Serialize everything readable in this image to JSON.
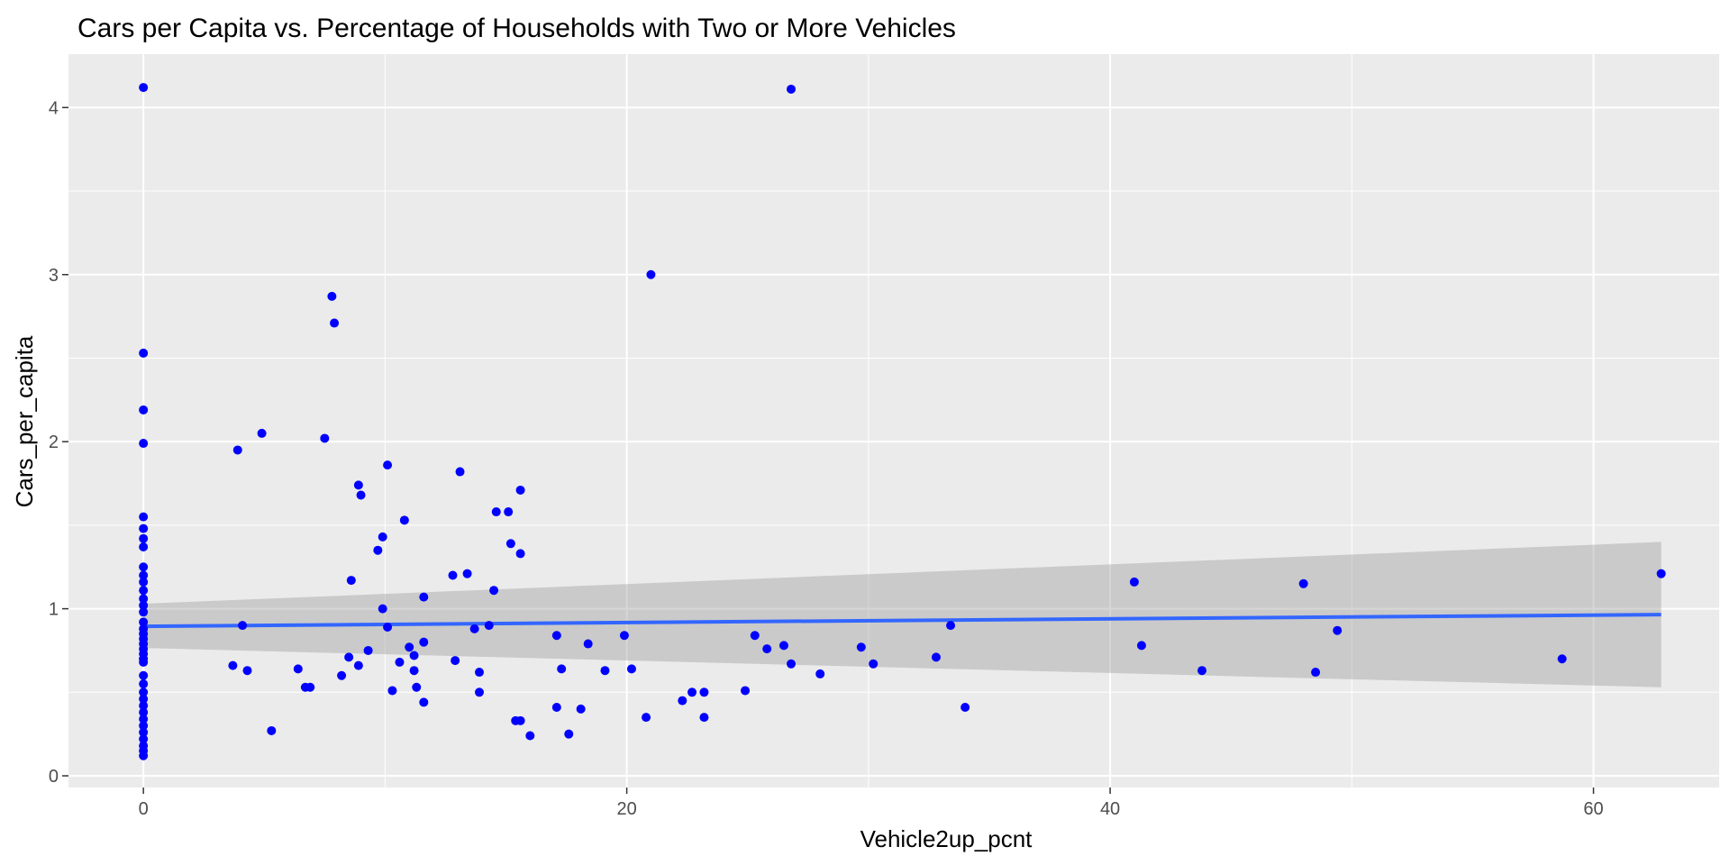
{
  "chart_data": {
    "type": "scatter",
    "title": "Cars per Capita vs. Percentage of Households with Two or More Vehicles",
    "xlabel": "Vehicle2up_pcnt",
    "ylabel": "Cars_per_capita",
    "xlim": [
      -3.1,
      65.2
    ],
    "ylim": [
      -0.07,
      4.32
    ],
    "xticks": [
      0,
      20,
      40,
      60
    ],
    "yticks": [
      0,
      1,
      2,
      3,
      4
    ],
    "grid": true,
    "point_color": "#0000ff",
    "line_color": "#3366ff",
    "band_color": "#999999",
    "panel_color": "#ebebeb",
    "grid_color": "#ffffff",
    "points": [
      [
        0,
        4.12
      ],
      [
        0,
        2.53
      ],
      [
        0,
        2.19
      ],
      [
        0,
        1.99
      ],
      [
        0,
        1.55
      ],
      [
        0,
        1.48
      ],
      [
        0,
        1.42
      ],
      [
        0,
        1.37
      ],
      [
        0,
        1.25
      ],
      [
        0,
        1.2
      ],
      [
        0,
        1.16
      ],
      [
        0,
        1.11
      ],
      [
        0,
        1.06
      ],
      [
        0,
        1.02
      ],
      [
        0,
        0.98
      ],
      [
        0,
        0.92
      ],
      [
        0,
        0.88
      ],
      [
        0,
        0.85
      ],
      [
        0,
        0.82
      ],
      [
        0,
        0.79
      ],
      [
        0,
        0.76
      ],
      [
        0,
        0.73
      ],
      [
        0,
        0.7
      ],
      [
        0,
        0.68
      ],
      [
        0,
        0.6
      ],
      [
        0,
        0.55
      ],
      [
        0,
        0.5
      ],
      [
        0,
        0.46
      ],
      [
        0,
        0.42
      ],
      [
        0,
        0.38
      ],
      [
        0,
        0.34
      ],
      [
        0,
        0.3
      ],
      [
        0,
        0.26
      ],
      [
        0,
        0.22
      ],
      [
        0,
        0.18
      ],
      [
        0,
        0.15
      ],
      [
        0,
        0.12
      ],
      [
        3.7,
        0.66
      ],
      [
        3.9,
        1.95
      ],
      [
        4.1,
        0.9
      ],
      [
        4.3,
        0.63
      ],
      [
        4.9,
        2.05
      ],
      [
        5.3,
        0.27
      ],
      [
        6.4,
        0.64
      ],
      [
        6.7,
        0.53
      ],
      [
        6.9,
        0.53
      ],
      [
        7.5,
        2.02
      ],
      [
        7.8,
        2.87
      ],
      [
        7.9,
        2.71
      ],
      [
        8.2,
        0.6
      ],
      [
        8.5,
        0.71
      ],
      [
        8.6,
        1.17
      ],
      [
        8.9,
        1.74
      ],
      [
        8.9,
        0.66
      ],
      [
        9.0,
        1.68
      ],
      [
        9.3,
        0.75
      ],
      [
        9.7,
        1.35
      ],
      [
        9.9,
        1.0
      ],
      [
        9.9,
        1.43
      ],
      [
        10.1,
        0.89
      ],
      [
        10.1,
        1.86
      ],
      [
        10.3,
        0.51
      ],
      [
        10.6,
        0.68
      ],
      [
        10.8,
        1.53
      ],
      [
        11.0,
        0.77
      ],
      [
        11.2,
        0.72
      ],
      [
        11.2,
        0.63
      ],
      [
        11.3,
        0.53
      ],
      [
        11.6,
        1.07
      ],
      [
        11.6,
        0.8
      ],
      [
        11.6,
        0.44
      ],
      [
        12.8,
        1.2
      ],
      [
        12.9,
        0.69
      ],
      [
        13.1,
        1.82
      ],
      [
        13.4,
        1.21
      ],
      [
        13.7,
        0.88
      ],
      [
        13.9,
        0.62
      ],
      [
        13.9,
        0.5
      ],
      [
        14.3,
        0.9
      ],
      [
        14.5,
        1.11
      ],
      [
        14.6,
        1.58
      ],
      [
        15.1,
        1.58
      ],
      [
        15.2,
        1.39
      ],
      [
        15.4,
        0.33
      ],
      [
        15.6,
        1.71
      ],
      [
        15.6,
        1.33
      ],
      [
        15.6,
        0.33
      ],
      [
        16.0,
        0.24
      ],
      [
        17.1,
        0.84
      ],
      [
        17.1,
        0.41
      ],
      [
        17.3,
        0.64
      ],
      [
        17.6,
        0.25
      ],
      [
        18.1,
        0.4
      ],
      [
        18.4,
        0.79
      ],
      [
        19.1,
        0.63
      ],
      [
        19.9,
        0.84
      ],
      [
        20.2,
        0.64
      ],
      [
        20.8,
        0.35
      ],
      [
        21.0,
        3.0
      ],
      [
        22.3,
        0.45
      ],
      [
        22.7,
        0.5
      ],
      [
        23.2,
        0.5
      ],
      [
        23.2,
        0.35
      ],
      [
        24.9,
        0.51
      ],
      [
        25.3,
        0.84
      ],
      [
        25.8,
        0.76
      ],
      [
        26.5,
        0.78
      ],
      [
        26.8,
        4.11
      ],
      [
        26.8,
        0.67
      ],
      [
        28.0,
        0.61
      ],
      [
        29.7,
        0.77
      ],
      [
        30.2,
        0.67
      ],
      [
        32.8,
        0.71
      ],
      [
        33.4,
        0.9
      ],
      [
        34.0,
        0.41
      ],
      [
        41.0,
        1.16
      ],
      [
        41.3,
        0.78
      ],
      [
        43.8,
        0.63
      ],
      [
        48.0,
        1.15
      ],
      [
        48.5,
        0.62
      ],
      [
        49.4,
        0.87
      ],
      [
        58.7,
        0.7
      ],
      [
        62.8,
        1.21
      ]
    ],
    "trend": {
      "x_start": 0,
      "x_end": 62.8,
      "y_start": 0.895,
      "y_end": 0.965
    },
    "band": {
      "upper_start": 1.03,
      "upper_end": 1.4,
      "lower_start": 0.765,
      "lower_end": 0.53
    }
  }
}
